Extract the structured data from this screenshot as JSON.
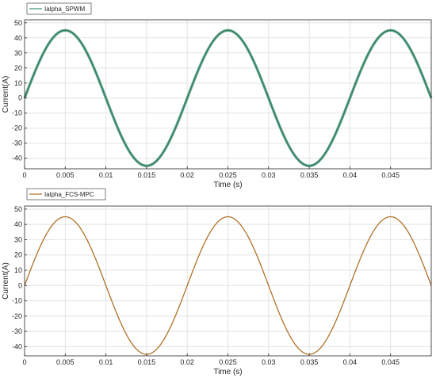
{
  "chart_data": [
    {
      "type": "line",
      "series": [
        {
          "name": "Ialpha_SPWM",
          "color": "#4a9a7a",
          "amplitude": 45,
          "frequency_hz": 50,
          "phase": 0,
          "ripple": 1.5
        }
      ],
      "xlabel": "Time (s)",
      "ylabel": "Current(A)",
      "xlim": [
        0,
        0.05
      ],
      "ylim": [
        -47,
        52
      ],
      "xticks": [
        0,
        0.005,
        0.01,
        0.015,
        0.02,
        0.025,
        0.03,
        0.035,
        0.04,
        0.045
      ],
      "xtick_labels": [
        "0",
        "0.005",
        "0.01",
        "0.015",
        "0.02",
        "0.025",
        "0.03",
        "0.035",
        "0.04",
        "0.045"
      ],
      "yticks": [
        -40,
        -30,
        -20,
        -10,
        0,
        10,
        20,
        30,
        40,
        50
      ],
      "ytick_labels": [
        "-40",
        "-30",
        "-20",
        "-10",
        "0",
        "10",
        "20",
        "30",
        "40",
        "50"
      ],
      "grid": true,
      "legend": "top-left"
    },
    {
      "type": "line",
      "series": [
        {
          "name": "Ialpha_FCS-MPC",
          "color": "#b0722a",
          "amplitude": 45,
          "frequency_hz": 50,
          "phase": 0,
          "ripple": 0
        }
      ],
      "xlabel": "Time (s)",
      "ylabel": "Current(A)",
      "xlim": [
        0,
        0.05
      ],
      "ylim": [
        -46,
        52
      ],
      "xticks": [
        0,
        0.005,
        0.01,
        0.015,
        0.02,
        0.025,
        0.03,
        0.035,
        0.04,
        0.045
      ],
      "xtick_labels": [
        "0",
        "0.005",
        "0.01",
        "0.015",
        "0.02",
        "0.025",
        "0.03",
        "0.035",
        "0.04",
        "0.045"
      ],
      "yticks": [
        -40,
        -30,
        -20,
        -10,
        0,
        10,
        20,
        30,
        40,
        50
      ],
      "ytick_labels": [
        "-40",
        "-30",
        "-20",
        "-10",
        "0",
        "10",
        "20",
        "30",
        "40",
        "50"
      ],
      "grid": true,
      "legend": "top-left"
    }
  ]
}
